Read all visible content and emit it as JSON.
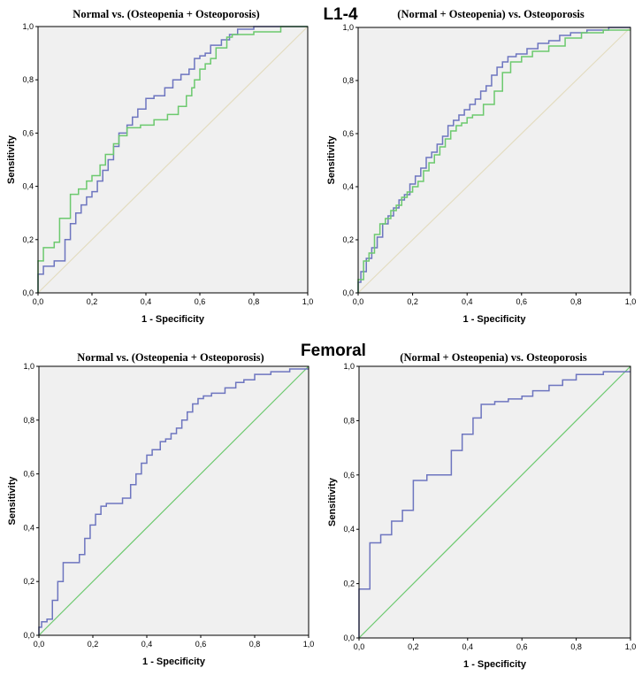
{
  "sections": {
    "top_label": "L1-4",
    "bottom_label": "Femoral"
  },
  "colors": {
    "plot_bg": "#f0f0f0",
    "series_blue": "#6d75bf",
    "series_green": "#6cc96e",
    "reference_beige": "#e3dcc0",
    "reference_green": "#6cc96e"
  },
  "chart_data": [
    {
      "type": "line",
      "title": "Normal vs. (Osteopenia + Osteoporosis)",
      "xlabel": "1 - Specificity",
      "ylabel": "Sensitivity",
      "xlim": [
        0,
        1
      ],
      "ylim": [
        0,
        1
      ],
      "xticks": [
        "0,0",
        "0,2",
        "0,4",
        "0,6",
        "0,8",
        "1,0"
      ],
      "yticks": [
        "0,0",
        "0,2",
        "0,4",
        "0,6",
        "0,8",
        "1,0"
      ],
      "reference_color": "#e3dcc0",
      "series": [
        {
          "name": "ROC curve (blue)",
          "color": "#6d75bf",
          "x": [
            0,
            0,
            0.02,
            0.02,
            0.06,
            0.06,
            0.1,
            0.1,
            0.12,
            0.12,
            0.14,
            0.14,
            0.16,
            0.16,
            0.18,
            0.18,
            0.2,
            0.2,
            0.22,
            0.22,
            0.24,
            0.24,
            0.26,
            0.26,
            0.28,
            0.28,
            0.3,
            0.3,
            0.33,
            0.33,
            0.35,
            0.35,
            0.37,
            0.37,
            0.4,
            0.4,
            0.43,
            0.43,
            0.47,
            0.47,
            0.5,
            0.5,
            0.53,
            0.53,
            0.56,
            0.56,
            0.58,
            0.58,
            0.6,
            0.6,
            0.62,
            0.62,
            0.64,
            0.64,
            0.68,
            0.68,
            0.71,
            0.71,
            0.74,
            0.74,
            0.8,
            0.8,
            0.89,
            0.89,
            1.0
          ],
          "y": [
            0,
            0.07,
            0.07,
            0.1,
            0.1,
            0.12,
            0.12,
            0.2,
            0.2,
            0.26,
            0.26,
            0.3,
            0.3,
            0.33,
            0.33,
            0.36,
            0.36,
            0.38,
            0.38,
            0.42,
            0.42,
            0.46,
            0.46,
            0.5,
            0.5,
            0.55,
            0.55,
            0.6,
            0.6,
            0.63,
            0.63,
            0.66,
            0.66,
            0.69,
            0.69,
            0.73,
            0.73,
            0.74,
            0.74,
            0.77,
            0.77,
            0.8,
            0.8,
            0.82,
            0.82,
            0.84,
            0.84,
            0.88,
            0.88,
            0.89,
            0.89,
            0.9,
            0.9,
            0.93,
            0.93,
            0.95,
            0.95,
            0.97,
            0.97,
            0.99,
            0.99,
            1.0,
            1.0,
            1.0,
            1.0
          ]
        },
        {
          "name": "ROC curve (green)",
          "color": "#6cc96e",
          "x": [
            0,
            0,
            0.02,
            0.02,
            0.06,
            0.06,
            0.08,
            0.08,
            0.12,
            0.12,
            0.15,
            0.15,
            0.18,
            0.18,
            0.2,
            0.2,
            0.23,
            0.23,
            0.25,
            0.25,
            0.28,
            0.28,
            0.3,
            0.3,
            0.33,
            0.33,
            0.38,
            0.38,
            0.43,
            0.43,
            0.48,
            0.48,
            0.52,
            0.52,
            0.55,
            0.55,
            0.57,
            0.57,
            0.58,
            0.58,
            0.6,
            0.6,
            0.62,
            0.62,
            0.64,
            0.64,
            0.66,
            0.66,
            0.7,
            0.7,
            0.72,
            0.72,
            0.8,
            0.8,
            0.9,
            0.9,
            1.0
          ],
          "y": [
            0,
            0.12,
            0.12,
            0.17,
            0.17,
            0.19,
            0.19,
            0.28,
            0.28,
            0.37,
            0.37,
            0.39,
            0.39,
            0.42,
            0.42,
            0.44,
            0.44,
            0.48,
            0.48,
            0.52,
            0.52,
            0.56,
            0.56,
            0.59,
            0.59,
            0.62,
            0.62,
            0.63,
            0.63,
            0.65,
            0.65,
            0.67,
            0.67,
            0.7,
            0.7,
            0.74,
            0.74,
            0.77,
            0.77,
            0.8,
            0.8,
            0.84,
            0.84,
            0.86,
            0.86,
            0.88,
            0.88,
            0.92,
            0.92,
            0.96,
            0.96,
            0.97,
            0.97,
            0.98,
            0.98,
            1.0,
            1.0
          ]
        }
      ]
    },
    {
      "type": "line",
      "title": "(Normal + Osteopenia) vs. Osteoporosis",
      "xlabel": "1 - Specificity",
      "ylabel": "Sensitivity",
      "xlim": [
        0,
        1
      ],
      "ylim": [
        0,
        1
      ],
      "xticks": [
        "0,0",
        "0,2",
        "0,4",
        "0,6",
        "0,8",
        "1,0"
      ],
      "yticks": [
        "0,0",
        "0,2",
        "0,4",
        "0,6",
        "0,8",
        "1,0"
      ],
      "reference_color": "#e3dcc0",
      "series": [
        {
          "name": "ROC curve (blue)",
          "color": "#6d75bf",
          "x": [
            0,
            0,
            0.01,
            0.01,
            0.03,
            0.03,
            0.05,
            0.05,
            0.07,
            0.07,
            0.09,
            0.09,
            0.11,
            0.11,
            0.13,
            0.13,
            0.15,
            0.15,
            0.17,
            0.17,
            0.19,
            0.19,
            0.21,
            0.21,
            0.23,
            0.23,
            0.25,
            0.25,
            0.27,
            0.27,
            0.29,
            0.29,
            0.31,
            0.31,
            0.33,
            0.33,
            0.35,
            0.35,
            0.37,
            0.37,
            0.39,
            0.39,
            0.41,
            0.41,
            0.43,
            0.43,
            0.45,
            0.45,
            0.47,
            0.47,
            0.49,
            0.49,
            0.51,
            0.51,
            0.53,
            0.53,
            0.55,
            0.55,
            0.58,
            0.58,
            0.62,
            0.62,
            0.66,
            0.66,
            0.7,
            0.7,
            0.74,
            0.74,
            0.78,
            0.78,
            0.84,
            0.84,
            0.92,
            0.92,
            1.0
          ],
          "y": [
            0,
            0.04,
            0.04,
            0.08,
            0.08,
            0.13,
            0.13,
            0.17,
            0.17,
            0.21,
            0.21,
            0.26,
            0.26,
            0.29,
            0.29,
            0.32,
            0.32,
            0.35,
            0.35,
            0.37,
            0.37,
            0.41,
            0.41,
            0.44,
            0.44,
            0.47,
            0.47,
            0.51,
            0.51,
            0.53,
            0.53,
            0.56,
            0.56,
            0.59,
            0.59,
            0.63,
            0.63,
            0.65,
            0.65,
            0.67,
            0.67,
            0.69,
            0.69,
            0.71,
            0.71,
            0.73,
            0.73,
            0.76,
            0.76,
            0.78,
            0.78,
            0.82,
            0.82,
            0.85,
            0.85,
            0.87,
            0.87,
            0.89,
            0.89,
            0.9,
            0.9,
            0.92,
            0.92,
            0.94,
            0.94,
            0.95,
            0.95,
            0.97,
            0.97,
            0.98,
            0.98,
            0.99,
            0.99,
            1.0,
            1.0
          ]
        },
        {
          "name": "ROC curve (green)",
          "color": "#6cc96e",
          "x": [
            0,
            0,
            0.02,
            0.02,
            0.04,
            0.04,
            0.06,
            0.06,
            0.08,
            0.08,
            0.1,
            0.1,
            0.12,
            0.12,
            0.14,
            0.14,
            0.16,
            0.16,
            0.18,
            0.18,
            0.2,
            0.2,
            0.22,
            0.22,
            0.24,
            0.24,
            0.26,
            0.26,
            0.28,
            0.28,
            0.3,
            0.3,
            0.32,
            0.32,
            0.34,
            0.34,
            0.36,
            0.36,
            0.38,
            0.38,
            0.4,
            0.4,
            0.42,
            0.42,
            0.46,
            0.46,
            0.5,
            0.5,
            0.53,
            0.53,
            0.56,
            0.56,
            0.6,
            0.6,
            0.64,
            0.64,
            0.7,
            0.7,
            0.76,
            0.76,
            0.82,
            0.82,
            0.9,
            0.9,
            1.0
          ],
          "y": [
            0,
            0.05,
            0.05,
            0.12,
            0.12,
            0.15,
            0.15,
            0.22,
            0.22,
            0.26,
            0.26,
            0.28,
            0.28,
            0.31,
            0.31,
            0.33,
            0.33,
            0.36,
            0.36,
            0.38,
            0.38,
            0.4,
            0.4,
            0.42,
            0.42,
            0.46,
            0.46,
            0.49,
            0.49,
            0.52,
            0.52,
            0.55,
            0.55,
            0.58,
            0.58,
            0.61,
            0.61,
            0.63,
            0.63,
            0.64,
            0.64,
            0.66,
            0.66,
            0.67,
            0.67,
            0.71,
            0.71,
            0.76,
            0.76,
            0.83,
            0.83,
            0.87,
            0.87,
            0.89,
            0.89,
            0.91,
            0.91,
            0.93,
            0.93,
            0.96,
            0.96,
            0.98,
            0.98,
            0.99,
            0.99
          ]
        }
      ]
    },
    {
      "type": "line",
      "title": "Normal vs. (Osteopenia + Osteoporosis)",
      "xlabel": "1 - Specificity",
      "ylabel": "Sensitivity",
      "xlim": [
        0,
        1
      ],
      "ylim": [
        0,
        1
      ],
      "xticks": [
        "0,0",
        "0,2",
        "0,4",
        "0,6",
        "0,8",
        "1,0"
      ],
      "yticks": [
        "0,0",
        "0,2",
        "0,4",
        "0,6",
        "0,8",
        "1,0"
      ],
      "reference_color": "#6cc96e",
      "series": [
        {
          "name": "ROC curve (blue)",
          "color": "#6d75bf",
          "x": [
            0,
            0,
            0.01,
            0.01,
            0.03,
            0.03,
            0.05,
            0.05,
            0.07,
            0.07,
            0.09,
            0.09,
            0.15,
            0.15,
            0.17,
            0.17,
            0.19,
            0.19,
            0.21,
            0.21,
            0.23,
            0.23,
            0.25,
            0.25,
            0.31,
            0.31,
            0.34,
            0.34,
            0.36,
            0.36,
            0.38,
            0.38,
            0.4,
            0.4,
            0.42,
            0.42,
            0.45,
            0.45,
            0.47,
            0.47,
            0.49,
            0.49,
            0.51,
            0.51,
            0.53,
            0.53,
            0.55,
            0.55,
            0.57,
            0.57,
            0.59,
            0.59,
            0.61,
            0.61,
            0.64,
            0.64,
            0.69,
            0.69,
            0.73,
            0.73,
            0.76,
            0.76,
            0.8,
            0.8,
            0.86,
            0.86,
            0.93,
            0.93,
            1.0
          ],
          "y": [
            0,
            0.03,
            0.03,
            0.05,
            0.05,
            0.06,
            0.06,
            0.13,
            0.13,
            0.2,
            0.2,
            0.27,
            0.27,
            0.3,
            0.3,
            0.36,
            0.36,
            0.41,
            0.41,
            0.45,
            0.45,
            0.48,
            0.48,
            0.49,
            0.49,
            0.51,
            0.51,
            0.56,
            0.56,
            0.6,
            0.6,
            0.64,
            0.64,
            0.67,
            0.67,
            0.69,
            0.69,
            0.72,
            0.72,
            0.73,
            0.73,
            0.75,
            0.75,
            0.77,
            0.77,
            0.8,
            0.8,
            0.83,
            0.83,
            0.86,
            0.86,
            0.88,
            0.88,
            0.89,
            0.89,
            0.9,
            0.9,
            0.92,
            0.92,
            0.94,
            0.94,
            0.95,
            0.95,
            0.97,
            0.97,
            0.98,
            0.98,
            0.99,
            0.99
          ]
        }
      ]
    },
    {
      "type": "line",
      "title": "(Normal + Osteopenia) vs. Osteoporosis",
      "xlabel": "1 - Specificity",
      "ylabel": "Sensitivity",
      "xlim": [
        0,
        1
      ],
      "ylim": [
        0,
        1
      ],
      "xticks": [
        "0,0",
        "0,2",
        "0,4",
        "0,6",
        "0,8",
        "1,0"
      ],
      "yticks": [
        "0,0",
        "0,2",
        "0,4",
        "0,6",
        "0,8",
        "1,0"
      ],
      "reference_color": "#6cc96e",
      "series": [
        {
          "name": "ROC curve (blue)",
          "color": "#6d75bf",
          "x": [
            0,
            0,
            0.04,
            0.04,
            0.08,
            0.08,
            0.12,
            0.12,
            0.16,
            0.16,
            0.2,
            0.2,
            0.25,
            0.25,
            0.34,
            0.34,
            0.38,
            0.38,
            0.42,
            0.42,
            0.45,
            0.45,
            0.5,
            0.5,
            0.55,
            0.55,
            0.6,
            0.6,
            0.64,
            0.64,
            0.7,
            0.7,
            0.75,
            0.75,
            0.8,
            0.8,
            0.9,
            0.9,
            1.0
          ],
          "y": [
            0,
            0.18,
            0.18,
            0.35,
            0.35,
            0.38,
            0.38,
            0.43,
            0.43,
            0.47,
            0.47,
            0.58,
            0.58,
            0.6,
            0.6,
            0.69,
            0.69,
            0.75,
            0.75,
            0.81,
            0.81,
            0.86,
            0.86,
            0.87,
            0.87,
            0.88,
            0.88,
            0.89,
            0.89,
            0.91,
            0.91,
            0.93,
            0.93,
            0.95,
            0.95,
            0.97,
            0.97,
            0.98,
            0.98
          ]
        }
      ]
    }
  ]
}
